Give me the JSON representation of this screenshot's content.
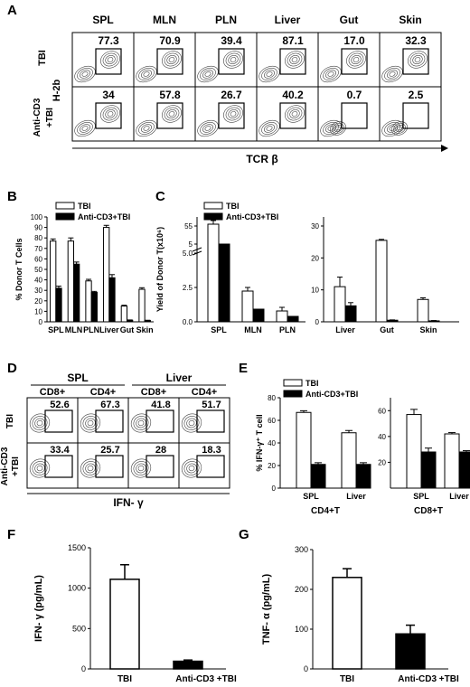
{
  "figure": {
    "panel_letters": [
      "A",
      "B",
      "C",
      "D",
      "E",
      "F",
      "G"
    ]
  },
  "panel_a": {
    "tissues": [
      "SPL",
      "MLN",
      "PLN",
      "Liver",
      "Gut",
      "Skin"
    ],
    "row_labels": [
      "TBI",
      "Anti-CD3\n+TBI"
    ],
    "y_axis_label": "H-2b",
    "x_axis_label": "TCR β",
    "percents": [
      [
        "77.3",
        "70.9",
        "39.4",
        "87.1",
        "17.0",
        "32.3"
      ],
      [
        "34",
        "57.8",
        "26.7",
        "40.2",
        "0.7",
        "2.5"
      ]
    ]
  },
  "panel_d": {
    "group_labels": [
      "SPL",
      "Liver"
    ],
    "subset_labels": [
      "CD8+",
      "CD4+",
      "CD8+",
      "CD4+"
    ],
    "row_labels": [
      "TBI",
      "Anti-CD3\n+TBI"
    ],
    "x_axis_label": "IFN- γ",
    "percents": [
      [
        "52.6",
        "67.3",
        "41.8",
        "51.7"
      ],
      [
        "33.4",
        "25.7",
        "28",
        "18.3"
      ]
    ]
  },
  "chart_data": [
    {
      "panel": "B",
      "type": "bar",
      "categories": [
        "SPL",
        "MLN",
        "PLN",
        "Liver",
        "Gut",
        "Skin"
      ],
      "series": [
        {
          "name": "TBI",
          "values": [
            77,
            77,
            39,
            90,
            15,
            31
          ],
          "errors": [
            2,
            3,
            1.5,
            2,
            0.8,
            1.5
          ],
          "color": "#ffffff"
        },
        {
          "name": "Anti-CD3+TBI",
          "values": [
            32,
            55,
            28,
            42,
            1.5,
            1.2
          ],
          "errors": [
            2,
            2,
            1,
            3,
            0.3,
            0.3
          ],
          "color": "#000000"
        }
      ],
      "ylabel": "% Donor T Cells",
      "ylim": [
        0,
        100
      ],
      "yticks": [
        0,
        10,
        20,
        30,
        40,
        50,
        60,
        70,
        80,
        90,
        100
      ]
    },
    {
      "panel": "C",
      "type": "bar",
      "categories": [
        "SPL",
        "MLN",
        "PLN",
        "Liver",
        "Gut",
        "Skin"
      ],
      "series": [
        {
          "name": "TBI",
          "values": [
            58,
            2.2,
            0.8,
            11,
            25.5,
            7
          ],
          "errors": [
            2,
            0.3,
            0.1,
            3,
            0.3,
            0.5
          ],
          "color": "#ffffff"
        },
        {
          "name": "Anti-CD3+TBI",
          "values": [
            52,
            0.9,
            0.4,
            5,
            0.5,
            0.3
          ],
          "errors": [
            2,
            0.1,
            0.05,
            1,
            0.1,
            0.1
          ],
          "color": "#000000"
        }
      ],
      "ylabel": "Yield of Donor T(x10⁶)",
      "left_axis_ticks": [
        "0.0",
        "2.5",
        "5.0",
        "5",
        "55"
      ],
      "right_axis_ticks": [
        0,
        10,
        20,
        30
      ],
      "right_ylim": [
        0,
        30
      ]
    },
    {
      "panel": "E",
      "type": "bar",
      "groups": [
        "CD4+T",
        "CD8+T"
      ],
      "categories": [
        "SPL",
        "Liver"
      ],
      "series": [
        {
          "name": "TBI",
          "values_cd4": [
            67,
            49
          ],
          "errors_cd4": [
            1.5,
            2
          ],
          "values_cd8": [
            57,
            42
          ],
          "errors_cd8": [
            4,
            1
          ],
          "color": "#ffffff"
        },
        {
          "name": "Anti-CD3+TBI",
          "values_cd4": [
            21,
            21
          ],
          "errors_cd4": [
            1.5,
            1.5
          ],
          "values_cd8": [
            28,
            28
          ],
          "errors_cd8": [
            3,
            1
          ],
          "color": "#000000"
        }
      ],
      "ylabel": "% IFN-γ⁺ T cell",
      "left_ylim": [
        0,
        80
      ],
      "left_yticks": [
        0,
        20,
        40,
        60,
        80
      ],
      "right_ylim": [
        0,
        70
      ],
      "right_yticks": [
        20,
        40,
        60
      ]
    },
    {
      "panel": "F",
      "type": "bar",
      "categories": [
        "TBI",
        "Anti-CD3 +TBI"
      ],
      "values": [
        1110,
        95
      ],
      "errors": [
        180,
        15
      ],
      "colors": [
        "#ffffff",
        "#000000"
      ],
      "ylabel": "IFN- γ (pg/mL)",
      "ylim": [
        0,
        1500
      ],
      "yticks": [
        0,
        500,
        1000,
        1500
      ]
    },
    {
      "panel": "G",
      "type": "bar",
      "categories": [
        "TBI",
        "Anti-CD3 +TBI"
      ],
      "values": [
        230,
        88
      ],
      "errors": [
        22,
        22
      ],
      "colors": [
        "#ffffff",
        "#000000"
      ],
      "ylabel": "TNF- α (pg/mL)",
      "ylim": [
        0,
        300
      ],
      "yticks": [
        0,
        100,
        200,
        300
      ]
    }
  ]
}
